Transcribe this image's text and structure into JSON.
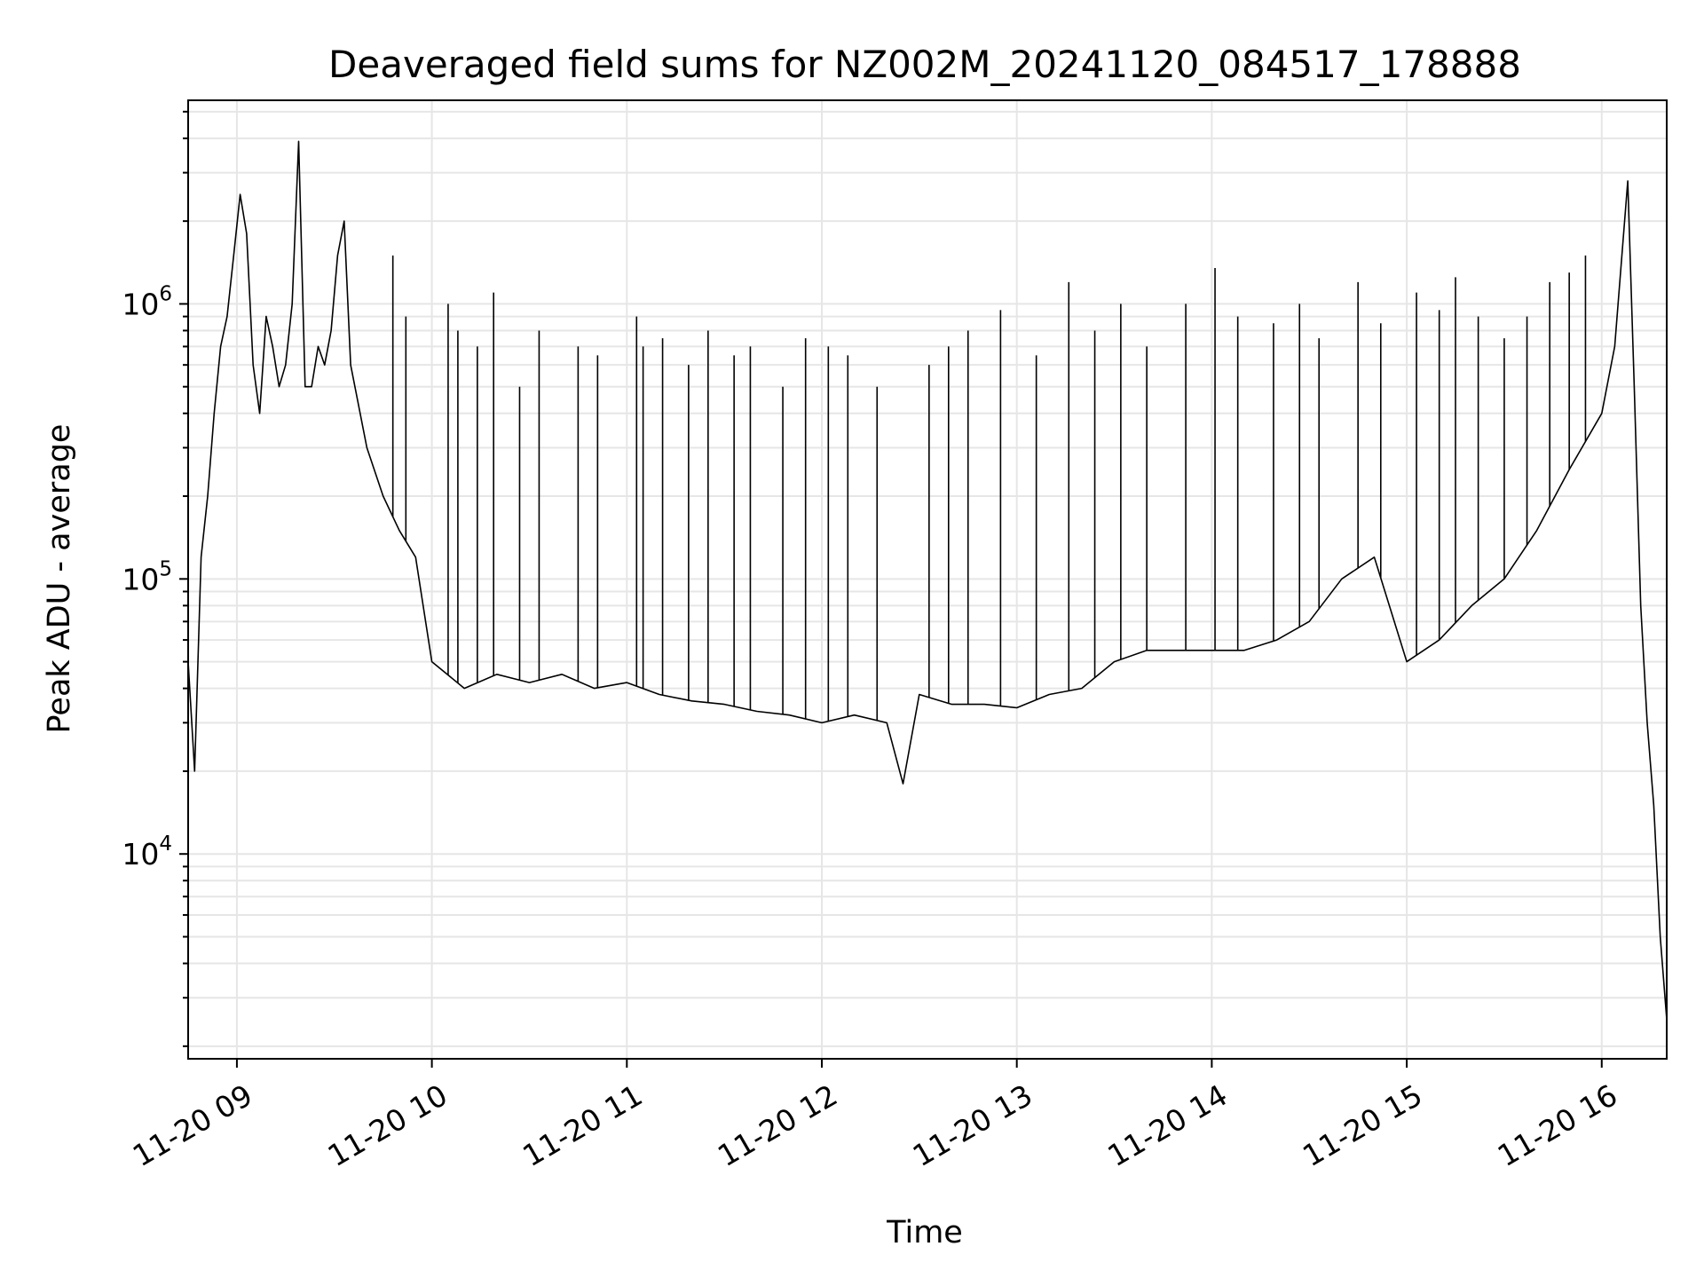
{
  "chart_data": {
    "type": "line",
    "title": "Deaveraged field sums for NZ002M_20241120_084517_178888",
    "xlabel": "Time",
    "ylabel": "Peak ADU - average",
    "y_scale": "log",
    "x_range": [
      "2024-11-20 08:45",
      "2024-11-20 16:20"
    ],
    "ylim": [
      1800,
      5500000
    ],
    "grid": true,
    "line_color": "#000000",
    "grid_color": "#e6e6e6",
    "x_ticks": [
      {
        "t": "2024-11-20 09:00",
        "label": "11-20 09"
      },
      {
        "t": "2024-11-20 10:00",
        "label": "11-20 10"
      },
      {
        "t": "2024-11-20 11:00",
        "label": "11-20 11"
      },
      {
        "t": "2024-11-20 12:00",
        "label": "11-20 12"
      },
      {
        "t": "2024-11-20 13:00",
        "label": "11-20 13"
      },
      {
        "t": "2024-11-20 14:00",
        "label": "11-20 14"
      },
      {
        "t": "2024-11-20 15:00",
        "label": "11-20 15"
      },
      {
        "t": "2024-11-20 16:00",
        "label": "11-20 16"
      }
    ],
    "y_ticks": [
      {
        "value": 10000,
        "base": "10",
        "exp": "4"
      },
      {
        "value": 100000,
        "base": "10",
        "exp": "5"
      },
      {
        "value": 1000000,
        "base": "10",
        "exp": "6"
      }
    ],
    "series": [
      {
        "values_note": "",
        "x": [
          "2024-11-20 08:45",
          "2024-11-20 08:47",
          "2024-11-20 08:49",
          "2024-11-20 08:51",
          "2024-11-20 08:53",
          "2024-11-20 08:55",
          "2024-11-20 08:57",
          "2024-11-20 08:59",
          "2024-11-20 09:01",
          "2024-11-20 09:03",
          "2024-11-20 09:05",
          "2024-11-20 09:07",
          "2024-11-20 09:09",
          "2024-11-20 09:11",
          "2024-11-20 09:13",
          "2024-11-20 09:15",
          "2024-11-20 09:17",
          "2024-11-20 09:19",
          "2024-11-20 09:21",
          "2024-11-20 09:23",
          "2024-11-20 09:25",
          "2024-11-20 09:27",
          "2024-11-20 09:29",
          "2024-11-20 09:31",
          "2024-11-20 09:33",
          "2024-11-20 09:35",
          "2024-11-20 09:40",
          "2024-11-20 09:45",
          "2024-11-20 09:50",
          "2024-11-20 09:55",
          "2024-11-20 10:00",
          "2024-11-20 10:10",
          "2024-11-20 10:20",
          "2024-11-20 10:30",
          "2024-11-20 10:40",
          "2024-11-20 10:50",
          "2024-11-20 11:00",
          "2024-11-20 11:10",
          "2024-11-20 11:20",
          "2024-11-20 11:30",
          "2024-11-20 11:40",
          "2024-11-20 11:50",
          "2024-11-20 12:00",
          "2024-11-20 12:10",
          "2024-11-20 12:20",
          "2024-11-20 12:25",
          "2024-11-20 12:30",
          "2024-11-20 12:40",
          "2024-11-20 12:50",
          "2024-11-20 13:00",
          "2024-11-20 13:10",
          "2024-11-20 13:20",
          "2024-11-20 13:30",
          "2024-11-20 13:40",
          "2024-11-20 13:50",
          "2024-11-20 14:00",
          "2024-11-20 14:10",
          "2024-11-20 14:20",
          "2024-11-20 14:30",
          "2024-11-20 14:40",
          "2024-11-20 14:50",
          "2024-11-20 15:00",
          "2024-11-20 15:10",
          "2024-11-20 15:20",
          "2024-11-20 15:30",
          "2024-11-20 15:40",
          "2024-11-20 15:50",
          "2024-11-20 16:00",
          "2024-11-20 16:04",
          "2024-11-20 16:08",
          "2024-11-20 16:10",
          "2024-11-20 16:12",
          "2024-11-20 16:14",
          "2024-11-20 16:16",
          "2024-11-20 16:18",
          "2024-11-20 16:20"
        ],
        "values": [
          50000,
          20000,
          120000,
          200000,
          400000,
          700000,
          900000,
          1500000,
          2500000,
          1800000,
          600000,
          400000,
          900000,
          700000,
          500000,
          600000,
          1000000,
          3900000,
          500000,
          500000,
          700000,
          600000,
          800000,
          1500000,
          2000000,
          600000,
          300000,
          200000,
          150000,
          120000,
          50000,
          40000,
          45000,
          42000,
          45000,
          40000,
          42000,
          38000,
          36000,
          35000,
          33000,
          32000,
          30000,
          32000,
          30000,
          18000,
          38000,
          35000,
          35000,
          34000,
          38000,
          40000,
          50000,
          55000,
          55000,
          55000,
          55000,
          60000,
          70000,
          100000,
          120000,
          50000,
          60000,
          80000,
          100000,
          150000,
          250000,
          400000,
          700000,
          2800000,
          500000,
          80000,
          30000,
          15000,
          5000,
          2500
        ],
        "spikes_x": [
          "2024-11-20 09:48",
          "2024-11-20 09:52",
          "2024-11-20 10:05",
          "2024-11-20 10:08",
          "2024-11-20 10:14",
          "2024-11-20 10:19",
          "2024-11-20 10:27",
          "2024-11-20 10:33",
          "2024-11-20 10:45",
          "2024-11-20 10:51",
          "2024-11-20 11:03",
          "2024-11-20 11:05",
          "2024-11-20 11:11",
          "2024-11-20 11:19",
          "2024-11-20 11:25",
          "2024-11-20 11:33",
          "2024-11-20 11:38",
          "2024-11-20 11:48",
          "2024-11-20 11:55",
          "2024-11-20 12:02",
          "2024-11-20 12:08",
          "2024-11-20 12:17",
          "2024-11-20 12:33",
          "2024-11-20 12:39",
          "2024-11-20 12:45",
          "2024-11-20 12:55",
          "2024-11-20 13:06",
          "2024-11-20 13:16",
          "2024-11-20 13:24",
          "2024-11-20 13:32",
          "2024-11-20 13:40",
          "2024-11-20 13:52",
          "2024-11-20 14:01",
          "2024-11-20 14:08",
          "2024-11-20 14:19",
          "2024-11-20 14:27",
          "2024-11-20 14:33",
          "2024-11-20 14:45",
          "2024-11-20 14:52",
          "2024-11-20 15:03",
          "2024-11-20 15:10",
          "2024-11-20 15:15",
          "2024-11-20 15:22",
          "2024-11-20 15:30",
          "2024-11-20 15:37",
          "2024-11-20 15:44",
          "2024-11-20 15:50",
          "2024-11-20 15:55"
        ],
        "spikes_values": [
          1500000,
          900000,
          1000000,
          800000,
          700000,
          1100000,
          500000,
          800000,
          700000,
          650000,
          900000,
          700000,
          750000,
          600000,
          800000,
          650000,
          700000,
          500000,
          750000,
          700000,
          650000,
          500000,
          600000,
          700000,
          800000,
          950000,
          650000,
          1200000,
          800000,
          1000000,
          700000,
          1000000,
          1350000,
          900000,
          850000,
          1000000,
          750000,
          1200000,
          850000,
          1100000,
          950000,
          1250000,
          900000,
          750000,
          900000,
          1200000,
          1300000,
          1500000
        ]
      }
    ]
  }
}
